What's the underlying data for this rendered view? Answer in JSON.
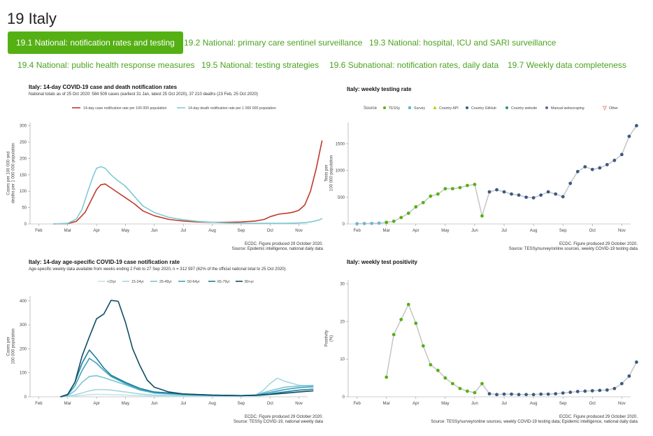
{
  "page": {
    "title": "19 Italy"
  },
  "tabs": [
    {
      "label": "19.1 National: notification rates and testing",
      "active": true
    },
    {
      "label": "19.2 National: primary care sentinel surveillance",
      "active": false
    },
    {
      "label": "19.3 National: hospital, ICU and SARI surveillance",
      "active": false
    },
    {
      "label": "19.4 National: public health response measures",
      "active": false
    },
    {
      "label": "19.5 National: testing strategies",
      "active": false
    },
    {
      "label": "19.6 Subnational: notification rates, daily data",
      "active": false
    },
    {
      "label": "19.7 Weekly data completeness",
      "active": false
    }
  ],
  "colors": {
    "tab_active_bg": "#55b014",
    "tab_text": "#4aa320",
    "cases": "#c0392b",
    "deaths": "#7ecbd3",
    "tessy": "#55b014",
    "github": "#3b5a85"
  },
  "chart_data": [
    {
      "type": "line",
      "title": "Italy: 14-day COVID-19 case and death notification rates",
      "subtitle": "National totals as of 25 Oct 2020: 584 509 cases (earliest 31 Jan, latest 25 Oct 2020), 37 210 deaths (23 Feb, 25 Oct 2020)",
      "ylabel": "Cases per 100 000 and\ndeaths per 1 000 000 population",
      "x_ticks": [
        "Feb",
        "Mar",
        "Apr",
        "May",
        "Jun",
        "Jul",
        "Aug",
        "Sep",
        "Oct",
        "Nov"
      ],
      "y_ticks": [
        0,
        50,
        100,
        150,
        200,
        250,
        300
      ],
      "ylim": [
        0,
        310
      ],
      "legend": [
        "14-day case notification rate per 100 000 population",
        "14-day death notification rate per 1 000 000 population"
      ],
      "caption": [
        "ECDC. Figure produced 29 October 2020.",
        "Source: Epidemic intelligence, national daily data"
      ],
      "series": [
        {
          "name": "14-day case notification rate per 100 000 population",
          "color": "#c0392b",
          "x": [
            0.5,
            1.0,
            1.3,
            1.6,
            1.8,
            2.0,
            2.15,
            2.3,
            2.5,
            2.8,
            3.0,
            3.3,
            3.6,
            4.0,
            4.5,
            5.0,
            5.5,
            6.0,
            6.5,
            7.0,
            7.5,
            7.8,
            8.0,
            8.3,
            8.6,
            8.8,
            9.0,
            9.2,
            9.4,
            9.6,
            9.8
          ],
          "y": [
            0,
            1,
            8,
            35,
            70,
            105,
            120,
            122,
            110,
            92,
            80,
            62,
            40,
            25,
            14,
            9,
            6,
            5,
            5,
            6,
            9,
            14,
            22,
            30,
            33,
            36,
            42,
            58,
            100,
            170,
            255
          ]
        },
        {
          "name": "14-day death notification rate per 1 000 000 population",
          "color": "#7ecbd3",
          "x": [
            0.5,
            1.0,
            1.3,
            1.5,
            1.7,
            1.9,
            2.0,
            2.15,
            2.3,
            2.5,
            2.7,
            3.0,
            3.3,
            3.6,
            4.0,
            4.5,
            5.0,
            5.5,
            6.0,
            6.5,
            7.0,
            7.5,
            8.0,
            8.5,
            9.0,
            9.3,
            9.5,
            9.7,
            9.8
          ],
          "y": [
            0,
            2,
            15,
            45,
            100,
            150,
            170,
            175,
            170,
            150,
            135,
            115,
            85,
            55,
            35,
            20,
            13,
            8,
            5,
            3,
            2,
            2,
            2,
            2,
            3,
            5,
            8,
            12,
            17
          ]
        }
      ]
    },
    {
      "type": "scatter",
      "title": "Italy: weekly testing rate",
      "ylabel": "Tests per\n100 000 population",
      "x_ticks": [
        "Feb",
        "Mar",
        "Apr",
        "May",
        "Jun",
        "Jul",
        "Aug",
        "Sep",
        "Oct",
        "Nov"
      ],
      "y_ticks": [
        0,
        500,
        1000,
        1500
      ],
      "ylim": [
        0,
        1900
      ],
      "legend_title": "Source",
      "legend": [
        "TESSy",
        "Survey",
        "Country API",
        "Country GitHub",
        "Country website",
        "Manual webscraping",
        "Other"
      ],
      "caption": [
        "ECDC. Figure produced 29 October 2020.",
        "Source: TESSy/survey/online sources, weekly COVID-19 testing data"
      ],
      "series": [
        {
          "name": "Survey",
          "color": "#6bb7d6",
          "x": [
            0.0,
            0.25,
            0.5,
            0.75
          ],
          "y": [
            5,
            8,
            10,
            15
          ]
        },
        {
          "name": "TESSy",
          "color": "#55b014",
          "x": [
            1.0,
            1.25,
            1.5,
            1.75,
            2.0,
            2.25,
            2.5,
            2.75,
            3.0,
            3.25,
            3.5,
            3.75,
            4.0,
            4.25
          ],
          "y": [
            30,
            50,
            120,
            200,
            320,
            400,
            520,
            560,
            660,
            660,
            680,
            720,
            740,
            150
          ]
        },
        {
          "name": "Country GitHub",
          "color": "#3b5a85",
          "x": [
            4.5,
            4.75,
            5.0,
            5.25,
            5.5,
            5.75,
            6.0,
            6.25,
            6.5,
            6.75,
            7.0,
            7.25,
            7.5,
            7.75,
            8.0,
            8.25,
            8.5,
            8.75,
            9.0,
            9.25,
            9.5
          ],
          "y": [
            600,
            640,
            600,
            560,
            540,
            500,
            490,
            540,
            600,
            560,
            510,
            760,
            980,
            1070,
            1020,
            1050,
            1110,
            1190,
            1300,
            1640,
            1840
          ]
        }
      ]
    },
    {
      "type": "line",
      "title": "Italy: 14-day age-specific COVID-19 case notification rate",
      "subtitle": "Age-specific weekly data available from weeks ending 2 Feb to 27 Sep 2020, n = 312 597 (62% of the official national total to 25 Oct 2020)",
      "ylabel": "Cases per\n100 000 population",
      "x_ticks": [
        "Feb",
        "Mar",
        "Apr",
        "May",
        "Jun",
        "Jul",
        "Aug",
        "Sep",
        "Oct",
        "Nov"
      ],
      "y_ticks": [
        0,
        100,
        200,
        300,
        400
      ],
      "ylim": [
        0,
        420
      ],
      "legend": [
        "<15yr",
        "15-24yr",
        "25-49yr",
        "50-64yr",
        "65-79yr",
        "80+yr"
      ],
      "caption": [
        "ECDC. Figure produced 29 October 2020.",
        "Source: TESSy COVID-19, national weekly data"
      ],
      "series": [
        {
          "name": "<15yr",
          "color": "#c6e3ec",
          "x": [
            0.75,
            1.0,
            1.25,
            1.5,
            1.75,
            2.0,
            2.25,
            2.5,
            3.0,
            3.5,
            4.0,
            5.0,
            6.0,
            7.0,
            7.5,
            7.75,
            8.0,
            8.25,
            8.5,
            9.0,
            9.5
          ],
          "y": [
            0,
            1,
            3,
            6,
            9,
            10,
            10,
            9,
            7,
            5,
            3,
            2,
            1,
            1,
            2,
            5,
            12,
            22,
            30,
            40,
            45
          ]
        },
        {
          "name": "15-24yr",
          "color": "#a6d6e2",
          "x": [
            0.75,
            1.0,
            1.25,
            1.5,
            1.75,
            2.0,
            2.25,
            2.5,
            3.0,
            3.5,
            4.0,
            5.0,
            6.0,
            7.0,
            7.5,
            7.75,
            8.0,
            8.25,
            8.5,
            9.0,
            9.5
          ],
          "y": [
            0,
            2,
            8,
            16,
            25,
            30,
            30,
            28,
            20,
            12,
            7,
            4,
            3,
            3,
            8,
            25,
            55,
            78,
            65,
            48,
            45
          ]
        },
        {
          "name": "25-49yr",
          "color": "#7ac5d4",
          "x": [
            0.75,
            1.0,
            1.25,
            1.5,
            1.75,
            2.0,
            2.25,
            2.5,
            3.0,
            3.5,
            4.0,
            5.0,
            6.0,
            7.0,
            7.5,
            8.0,
            8.5,
            9.0,
            9.5
          ],
          "y": [
            0,
            5,
            25,
            60,
            85,
            88,
            80,
            70,
            50,
            28,
            15,
            8,
            5,
            5,
            8,
            25,
            40,
            45,
            48
          ]
        },
        {
          "name": "50-64yr",
          "color": "#3fa3bd",
          "x": [
            0.75,
            1.0,
            1.25,
            1.5,
            1.75,
            2.0,
            2.25,
            2.5,
            3.0,
            3.5,
            4.0,
            5.0,
            6.0,
            7.0,
            7.5,
            8.0,
            8.5,
            9.0,
            9.5
          ],
          "y": [
            0,
            8,
            45,
            110,
            160,
            140,
            110,
            85,
            55,
            30,
            18,
            10,
            6,
            5,
            7,
            18,
            30,
            38,
            42
          ]
        },
        {
          "name": "65-79yr",
          "color": "#1d7d9b",
          "x": [
            0.75,
            1.0,
            1.25,
            1.5,
            1.75,
            2.0,
            2.25,
            2.5,
            3.0,
            3.5,
            4.0,
            5.0,
            6.0,
            7.0,
            7.5,
            8.0,
            8.5,
            9.0,
            9.5
          ],
          "y": [
            0,
            10,
            60,
            140,
            195,
            160,
            120,
            90,
            60,
            35,
            20,
            12,
            7,
            5,
            6,
            12,
            20,
            28,
            32
          ]
        },
        {
          "name": "80+yr",
          "color": "#0e4d63",
          "x": [
            0.75,
            1.0,
            1.25,
            1.5,
            1.75,
            2.0,
            2.25,
            2.5,
            2.75,
            3.0,
            3.25,
            3.5,
            3.75,
            4.0,
            4.5,
            5.0,
            6.0,
            7.0,
            7.5,
            8.0,
            8.5,
            9.0,
            9.5
          ],
          "y": [
            0,
            10,
            60,
            170,
            250,
            325,
            345,
            402,
            398,
            310,
            200,
            130,
            70,
            40,
            20,
            12,
            7,
            5,
            6,
            10,
            15,
            20,
            25
          ]
        }
      ]
    },
    {
      "type": "scatter",
      "title": "Italy: weekly test positivity",
      "ylabel": "Positivity\n(%)",
      "x_ticks": [
        "Feb",
        "Mar",
        "Apr",
        "May",
        "Jun",
        "Jul",
        "Aug",
        "Sep",
        "Oct",
        "Nov"
      ],
      "y_ticks": [
        0,
        10,
        20,
        30
      ],
      "ylim": [
        0,
        31
      ],
      "caption": [
        "ECDC. Figure produced 29 October 2020.",
        "Source: TESSy/survey/online sources, weekly COVID-19 testing data; Epidemic intelligence, national daily data"
      ],
      "series": [
        {
          "name": "TESSy",
          "color": "#55b014",
          "x": [
            1.0,
            1.25,
            1.5,
            1.75,
            2.0,
            2.25,
            2.5,
            2.75,
            3.0,
            3.25,
            3.5,
            3.75,
            4.0,
            4.25
          ],
          "y": [
            5.2,
            16.5,
            20.5,
            24.5,
            19.5,
            13.5,
            8.5,
            7,
            5,
            3.5,
            2.2,
            1.5,
            1.1,
            3.5
          ]
        },
        {
          "name": "Country GitHub",
          "color": "#3b5a85",
          "x": [
            4.5,
            4.75,
            5.0,
            5.25,
            5.5,
            5.75,
            6.0,
            6.25,
            6.5,
            6.75,
            7.0,
            7.25,
            7.5,
            7.75,
            8.0,
            8.25,
            8.5,
            8.75,
            9.0,
            9.25,
            9.5
          ],
          "y": [
            0.8,
            0.6,
            0.7,
            0.7,
            0.6,
            0.6,
            0.6,
            0.7,
            0.7,
            0.8,
            1.0,
            1.2,
            1.4,
            1.5,
            1.6,
            1.7,
            1.8,
            2.2,
            3.5,
            5.5,
            9.2
          ]
        }
      ]
    }
  ]
}
